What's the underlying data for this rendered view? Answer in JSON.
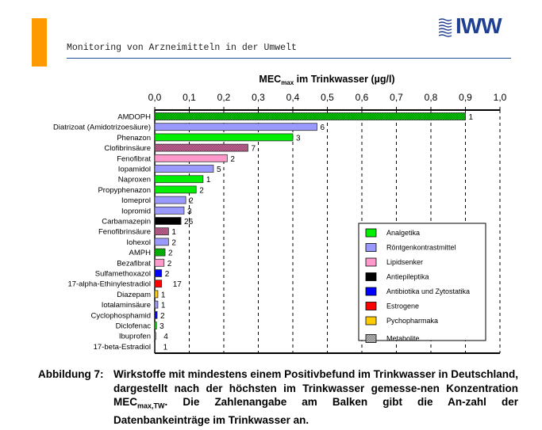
{
  "header": {
    "subtitle": "Monitoring von Arzneimitteln in der Umwelt",
    "logo_text": "IWW",
    "accent": "#ff9900"
  },
  "chart_data": {
    "type": "bar",
    "orientation": "horizontal",
    "xlabel_main": "MEC",
    "xlabel_sub": "max",
    "xlabel_rest": " im Trinkwasser (µg/l)",
    "xlim": [
      0,
      1.0
    ],
    "ticks": [
      "0,0",
      "0,1",
      "0,2",
      "0,3",
      "0,4",
      "0,5",
      "0,6",
      "0,7",
      "0,8",
      "0,9",
      "1,0"
    ],
    "grid": "vertical dashed",
    "legend_placement": "bottom-right",
    "legend": [
      {
        "name": "Analgetika",
        "color": "#00ee00"
      },
      {
        "name": "Röntgenkontrastmittel",
        "color": "#9999ff"
      },
      {
        "name": "Lipidsenker",
        "color": "#ff99cc"
      },
      {
        "name": "Antiepileptika",
        "color": "#000000"
      },
      {
        "name": "Antibiotika und Zytostatika",
        "color": "#0000ff"
      },
      {
        "name": "Estrogene",
        "color": "#ff0000"
      },
      {
        "name": "Pychopharmaka",
        "color": "#ffcc00"
      },
      {
        "name": "Metabolite",
        "color": "#bbbbbb",
        "pattern": "hatched"
      }
    ],
    "bars": [
      {
        "name": "AMDOPH",
        "value": 0.9,
        "count": "1",
        "group": "Analgetika",
        "metabolite": true
      },
      {
        "name": "Diatrizoat (Amidotrizoesäure)",
        "value": 0.47,
        "count": "6",
        "group": "Röntgenkontrastmittel"
      },
      {
        "name": "Phenazon",
        "value": 0.4,
        "count": "3",
        "group": "Analgetika"
      },
      {
        "name": "Clofibrinsäure",
        "value": 0.27,
        "count": "7",
        "group": "Lipidsenker",
        "metabolite": true
      },
      {
        "name": "Fenofibrat",
        "value": 0.21,
        "count": "2",
        "group": "Lipidsenker"
      },
      {
        "name": "Iopamidol",
        "value": 0.17,
        "count": "5",
        "group": "Röntgenkontrastmittel"
      },
      {
        "name": "Naproxen",
        "value": 0.14,
        "count": "1",
        "group": "Analgetika"
      },
      {
        "name": "Propyphenazon",
        "value": 0.12,
        "count": "2",
        "group": "Analgetika"
      },
      {
        "name": "Iomeprol",
        "value": 0.09,
        "count": "2",
        "group": "Röntgenkontrastmittel"
      },
      {
        "name": "Iopromid",
        "value": 0.085,
        "count": "3",
        "group": "Röntgenkontrastmittel"
      },
      {
        "name": "Carbamazepin",
        "value": 0.076,
        "count": "26",
        "group": "Antiepileptika"
      },
      {
        "name": "Fenofibrinsäure",
        "value": 0.04,
        "count": "1",
        "group": "Lipidsenker",
        "metabolite": true
      },
      {
        "name": "Iohexol",
        "value": 0.04,
        "count": "2",
        "group": "Röntgenkontrastmittel"
      },
      {
        "name": "AMPH",
        "value": 0.03,
        "count": "2",
        "group": "Analgetika",
        "metabolite": true
      },
      {
        "name": "Bezafibrat",
        "value": 0.027,
        "count": "2",
        "group": "Lipidsenker"
      },
      {
        "name": "Sulfamethoxazol",
        "value": 0.02,
        "count": "2",
        "group": "Antibiotika und Zytostatika"
      },
      {
        "name": "17-alpha-Ethinylestradiol",
        "value": 0.02,
        "count": "17",
        "group": "Estrogene"
      },
      {
        "name": "Diazepam",
        "value": 0.009,
        "count": "1",
        "group": "Pychopharmaka"
      },
      {
        "name": "Iotalaminsäure",
        "value": 0.009,
        "count": "1",
        "group": "Röntgenkontrastmittel"
      },
      {
        "name": "Cyclophosphamid",
        "value": 0.007,
        "count": "2",
        "group": "Antibiotika und Zytostatika"
      },
      {
        "name": "Diclofenac",
        "value": 0.005,
        "count": "3",
        "group": "Analgetika"
      },
      {
        "name": "Ibuprofen",
        "value": 0.003,
        "count": "4",
        "group": "Analgetika"
      },
      {
        "name": "17-beta-Estradiol",
        "value": 0.001,
        "count": "1",
        "group": "Estrogene"
      }
    ]
  },
  "caption": {
    "label": "Abbildung 7:",
    "part1": "Wirkstoffe mit mindestens einem Positivbefund im Trinkwasser in Deutschland, dargestellt nach der höchsten im Trinkwasser gemesse-nen Konzentration MEC",
    "sub": "max,TW",
    "part2": ". Die Zahlenangabe am Balken gibt die An-zahl der Datenbankeinträge im Trinkwasser an."
  }
}
